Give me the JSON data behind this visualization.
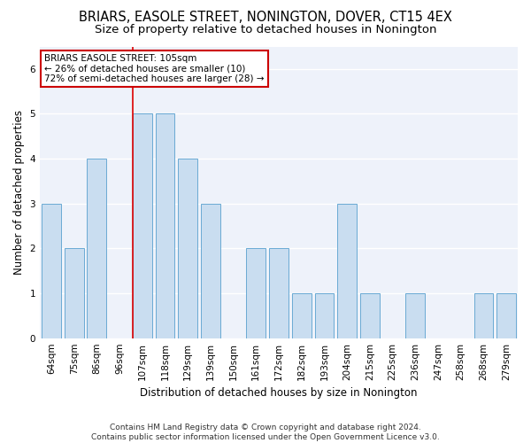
{
  "title": "BRIARS, EASOLE STREET, NONINGTON, DOVER, CT15 4EX",
  "subtitle": "Size of property relative to detached houses in Nonington",
  "xlabel": "Distribution of detached houses by size in Nonington",
  "ylabel": "Number of detached properties",
  "categories": [
    "64sqm",
    "75sqm",
    "86sqm",
    "96sqm",
    "107sqm",
    "118sqm",
    "129sqm",
    "139sqm",
    "150sqm",
    "161sqm",
    "172sqm",
    "182sqm",
    "193sqm",
    "204sqm",
    "215sqm",
    "225sqm",
    "236sqm",
    "247sqm",
    "258sqm",
    "268sqm",
    "279sqm"
  ],
  "values": [
    3,
    2,
    4,
    0,
    5,
    5,
    4,
    3,
    0,
    2,
    2,
    1,
    1,
    3,
    1,
    0,
    1,
    0,
    0,
    1,
    1
  ],
  "bar_color": "#c9ddf0",
  "bar_edge_color": "#6aaad4",
  "highlight_index": 4,
  "highlight_line_color": "#dd0000",
  "annotation_text": "BRIARS EASOLE STREET: 105sqm\n← 26% of detached houses are smaller (10)\n72% of semi-detached houses are larger (28) →",
  "annotation_box_facecolor": "#ffffff",
  "annotation_box_edgecolor": "#cc0000",
  "ylim": [
    0,
    6.5
  ],
  "yticks": [
    0,
    1,
    2,
    3,
    4,
    5,
    6
  ],
  "footer": "Contains HM Land Registry data © Crown copyright and database right 2024.\nContains public sector information licensed under the Open Government Licence v3.0.",
  "title_fontsize": 10.5,
  "subtitle_fontsize": 9.5,
  "xlabel_fontsize": 8.5,
  "ylabel_fontsize": 8.5,
  "tick_fontsize": 7.5,
  "annotation_fontsize": 7.5,
  "footer_fontsize": 6.5,
  "fig_bg": "#ffffff",
  "ax_bg": "#eef2fa"
}
